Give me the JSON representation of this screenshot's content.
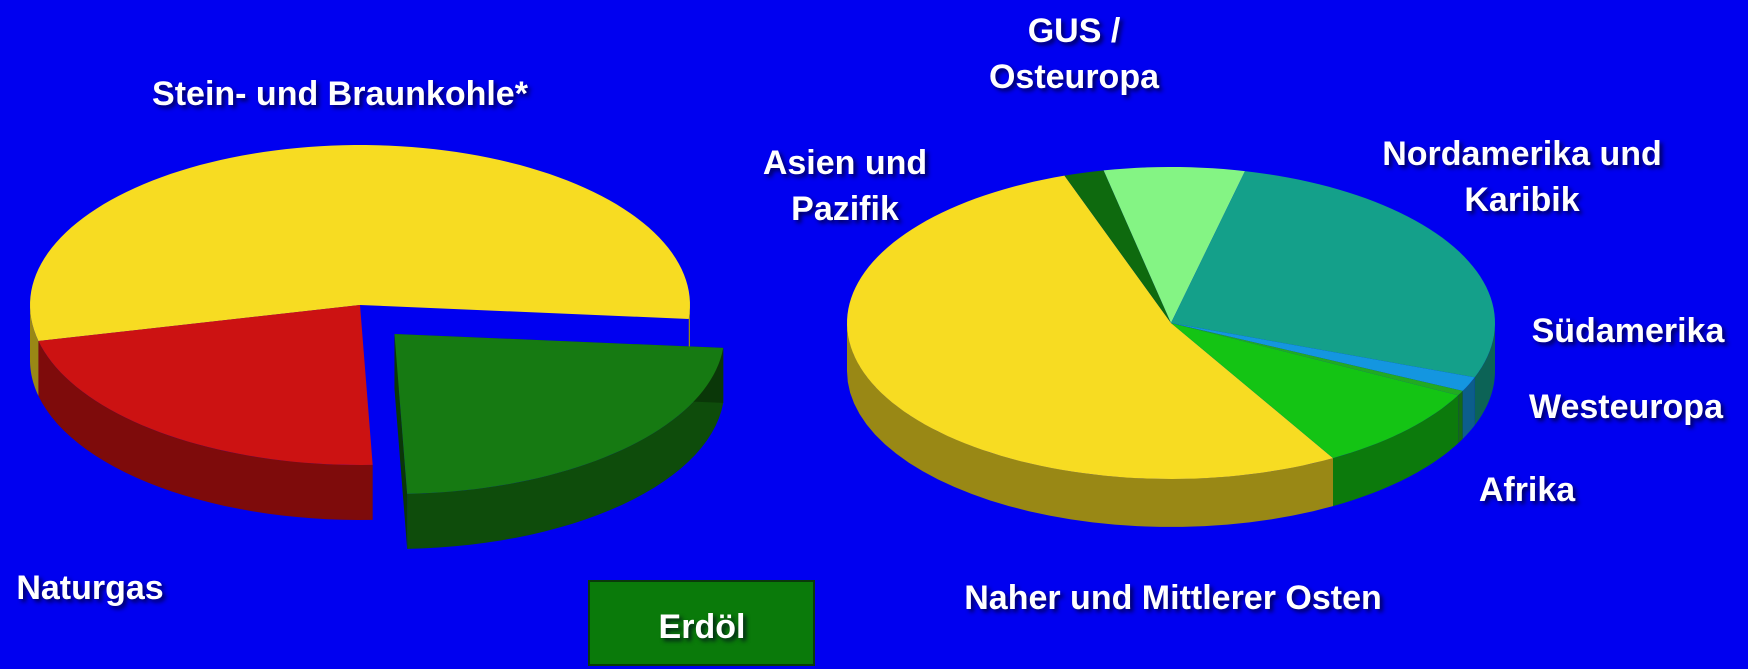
{
  "chart_data": [
    {
      "type": "pie",
      "categories": [
        "Stein- und Braunkohle*",
        "Erdöl",
        "Naturgas"
      ],
      "values": [
        55,
        23,
        22
      ],
      "colors": [
        "#f7dc22",
        "#167a12",
        "#cc1212"
      ]
    },
    {
      "type": "pie",
      "categories": [
        "Naher und Mittlerer Osten",
        "Asien und Pazifik",
        "GUS / Osteuropa",
        "Nordamerika und Karibik",
        "Südamerika",
        "Westeuropa",
        "Afrika"
      ],
      "values": [
        53,
        2,
        7,
        27,
        1.5,
        0.5,
        9
      ],
      "colors": [
        "#f7dc22",
        "#0e6a0e",
        "#84f484",
        "#14a08a",
        "#1496e0",
        "#22aa22",
        "#14c414"
      ]
    }
  ]
}
